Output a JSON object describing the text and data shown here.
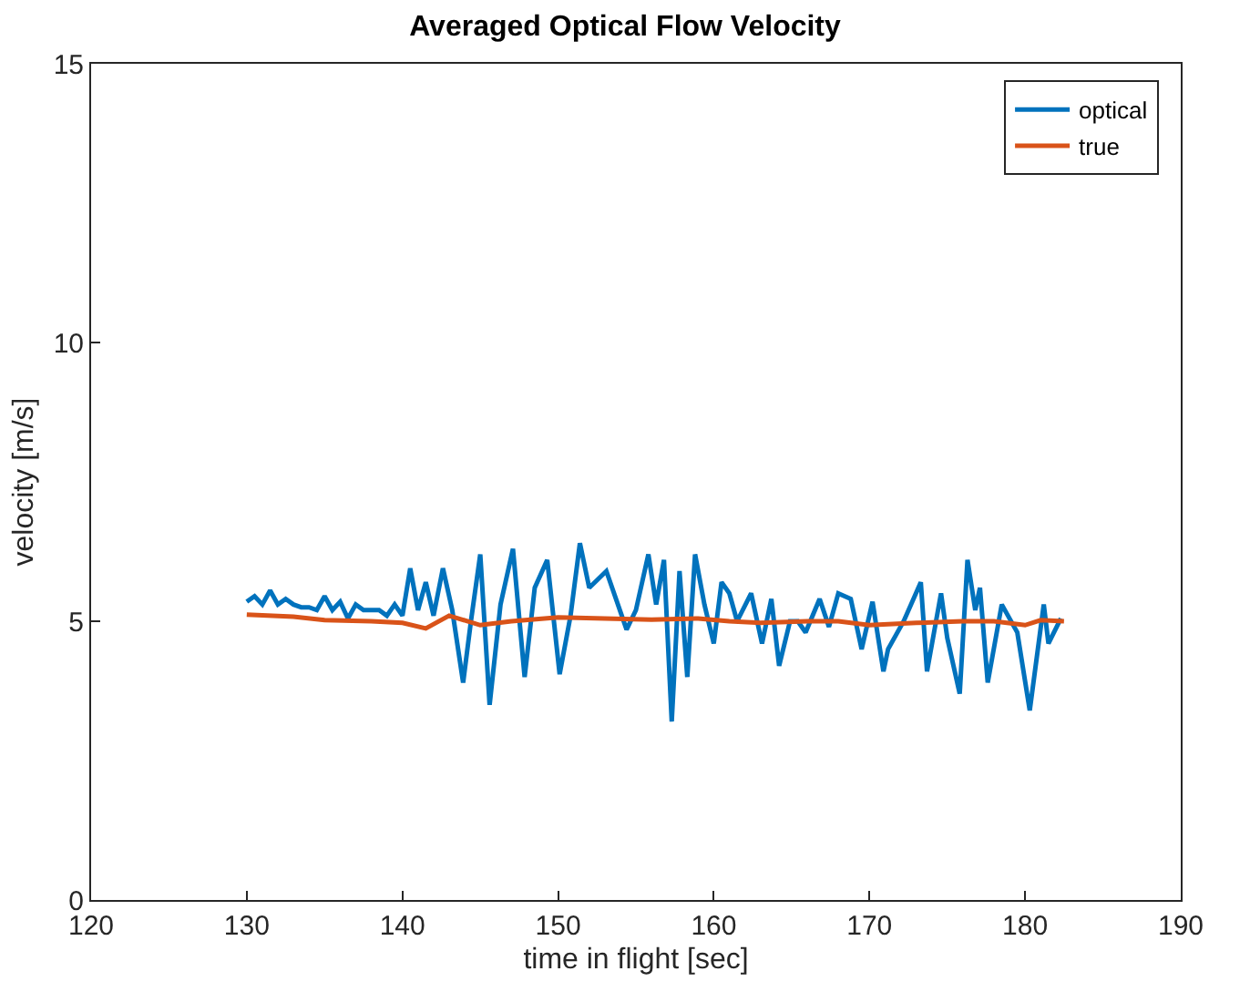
{
  "chart_data": {
    "type": "line",
    "title": "Averaged Optical Flow Velocity",
    "xlabel": "time in flight [sec]",
    "ylabel": "velocity [m/s]",
    "xlim": [
      120,
      190
    ],
    "xticks": [
      120,
      130,
      140,
      150,
      160,
      170,
      180,
      190
    ],
    "ylim": [
      0,
      15
    ],
    "yticks": [
      0,
      5,
      10,
      15
    ],
    "legend": "top right",
    "series": [
      {
        "name": "optical",
        "color": "#0072bd",
        "x": [
          130.0,
          130.5,
          131.0,
          131.5,
          132.0,
          132.5,
          133.0,
          133.5,
          134.0,
          134.5,
          135.0,
          135.5,
          136.0,
          136.5,
          137.0,
          137.5,
          138.0,
          138.5,
          139.0,
          139.5,
          140.0,
          140.5,
          141.0,
          141.5,
          142.0,
          142.6,
          143.2,
          143.9,
          144.4,
          145.0,
          145.6,
          146.3,
          147.1,
          147.85,
          148.5,
          149.3,
          150.1,
          150.8,
          151.4,
          152.0,
          153.1,
          154.4,
          155.0,
          155.8,
          156.3,
          156.8,
          157.3,
          157.8,
          158.3,
          158.8,
          159.4,
          160.0,
          160.5,
          161.0,
          161.5,
          162.4,
          163.1,
          163.7,
          164.2,
          164.9,
          165.4,
          165.9,
          166.8,
          167.4,
          168.0,
          168.8,
          169.5,
          170.2,
          170.9,
          171.2,
          172.2,
          173.3,
          173.7,
          174.6,
          175.0,
          175.8,
          176.3,
          176.8,
          177.1,
          177.6,
          178.5,
          179.5,
          180.3,
          181.2,
          181.5,
          182.3
        ],
        "values": [
          5.35,
          5.45,
          5.3,
          5.55,
          5.3,
          5.4,
          5.3,
          5.25,
          5.25,
          5.2,
          5.45,
          5.2,
          5.35,
          5.05,
          5.3,
          5.2,
          5.2,
          5.2,
          5.1,
          5.3,
          5.1,
          5.95,
          5.2,
          5.7,
          5.1,
          5.95,
          5.2,
          3.9,
          5.0,
          6.2,
          3.5,
          5.3,
          6.3,
          4.0,
          5.6,
          6.1,
          4.05,
          5.1,
          6.4,
          5.6,
          5.9,
          4.85,
          5.2,
          6.2,
          5.3,
          6.1,
          3.2,
          5.9,
          4.0,
          6.2,
          5.3,
          4.6,
          5.7,
          5.5,
          5.0,
          5.5,
          4.6,
          5.4,
          4.2,
          5.0,
          5.0,
          4.8,
          5.4,
          4.9,
          5.5,
          5.4,
          4.5,
          5.35,
          4.1,
          4.5,
          5.0,
          5.7,
          4.1,
          5.5,
          4.7,
          3.7,
          6.1,
          5.2,
          5.6,
          3.9,
          5.3,
          4.8,
          3.4,
          5.3,
          4.6,
          5.05
        ]
      },
      {
        "name": "true",
        "color": "#d95319",
        "x": [
          130,
          133,
          135,
          138,
          140,
          141.5,
          143,
          145,
          147,
          150,
          153,
          156,
          159,
          161,
          163,
          166,
          168,
          170,
          173,
          176,
          178,
          180,
          181,
          182.5
        ],
        "values": [
          5.12,
          5.08,
          5.02,
          5.0,
          4.97,
          4.87,
          5.1,
          4.93,
          5.0,
          5.07,
          5.05,
          5.03,
          5.05,
          5.0,
          4.97,
          5.0,
          5.0,
          4.93,
          4.97,
          5.0,
          5.0,
          4.93,
          5.02,
          5.0
        ]
      }
    ]
  }
}
